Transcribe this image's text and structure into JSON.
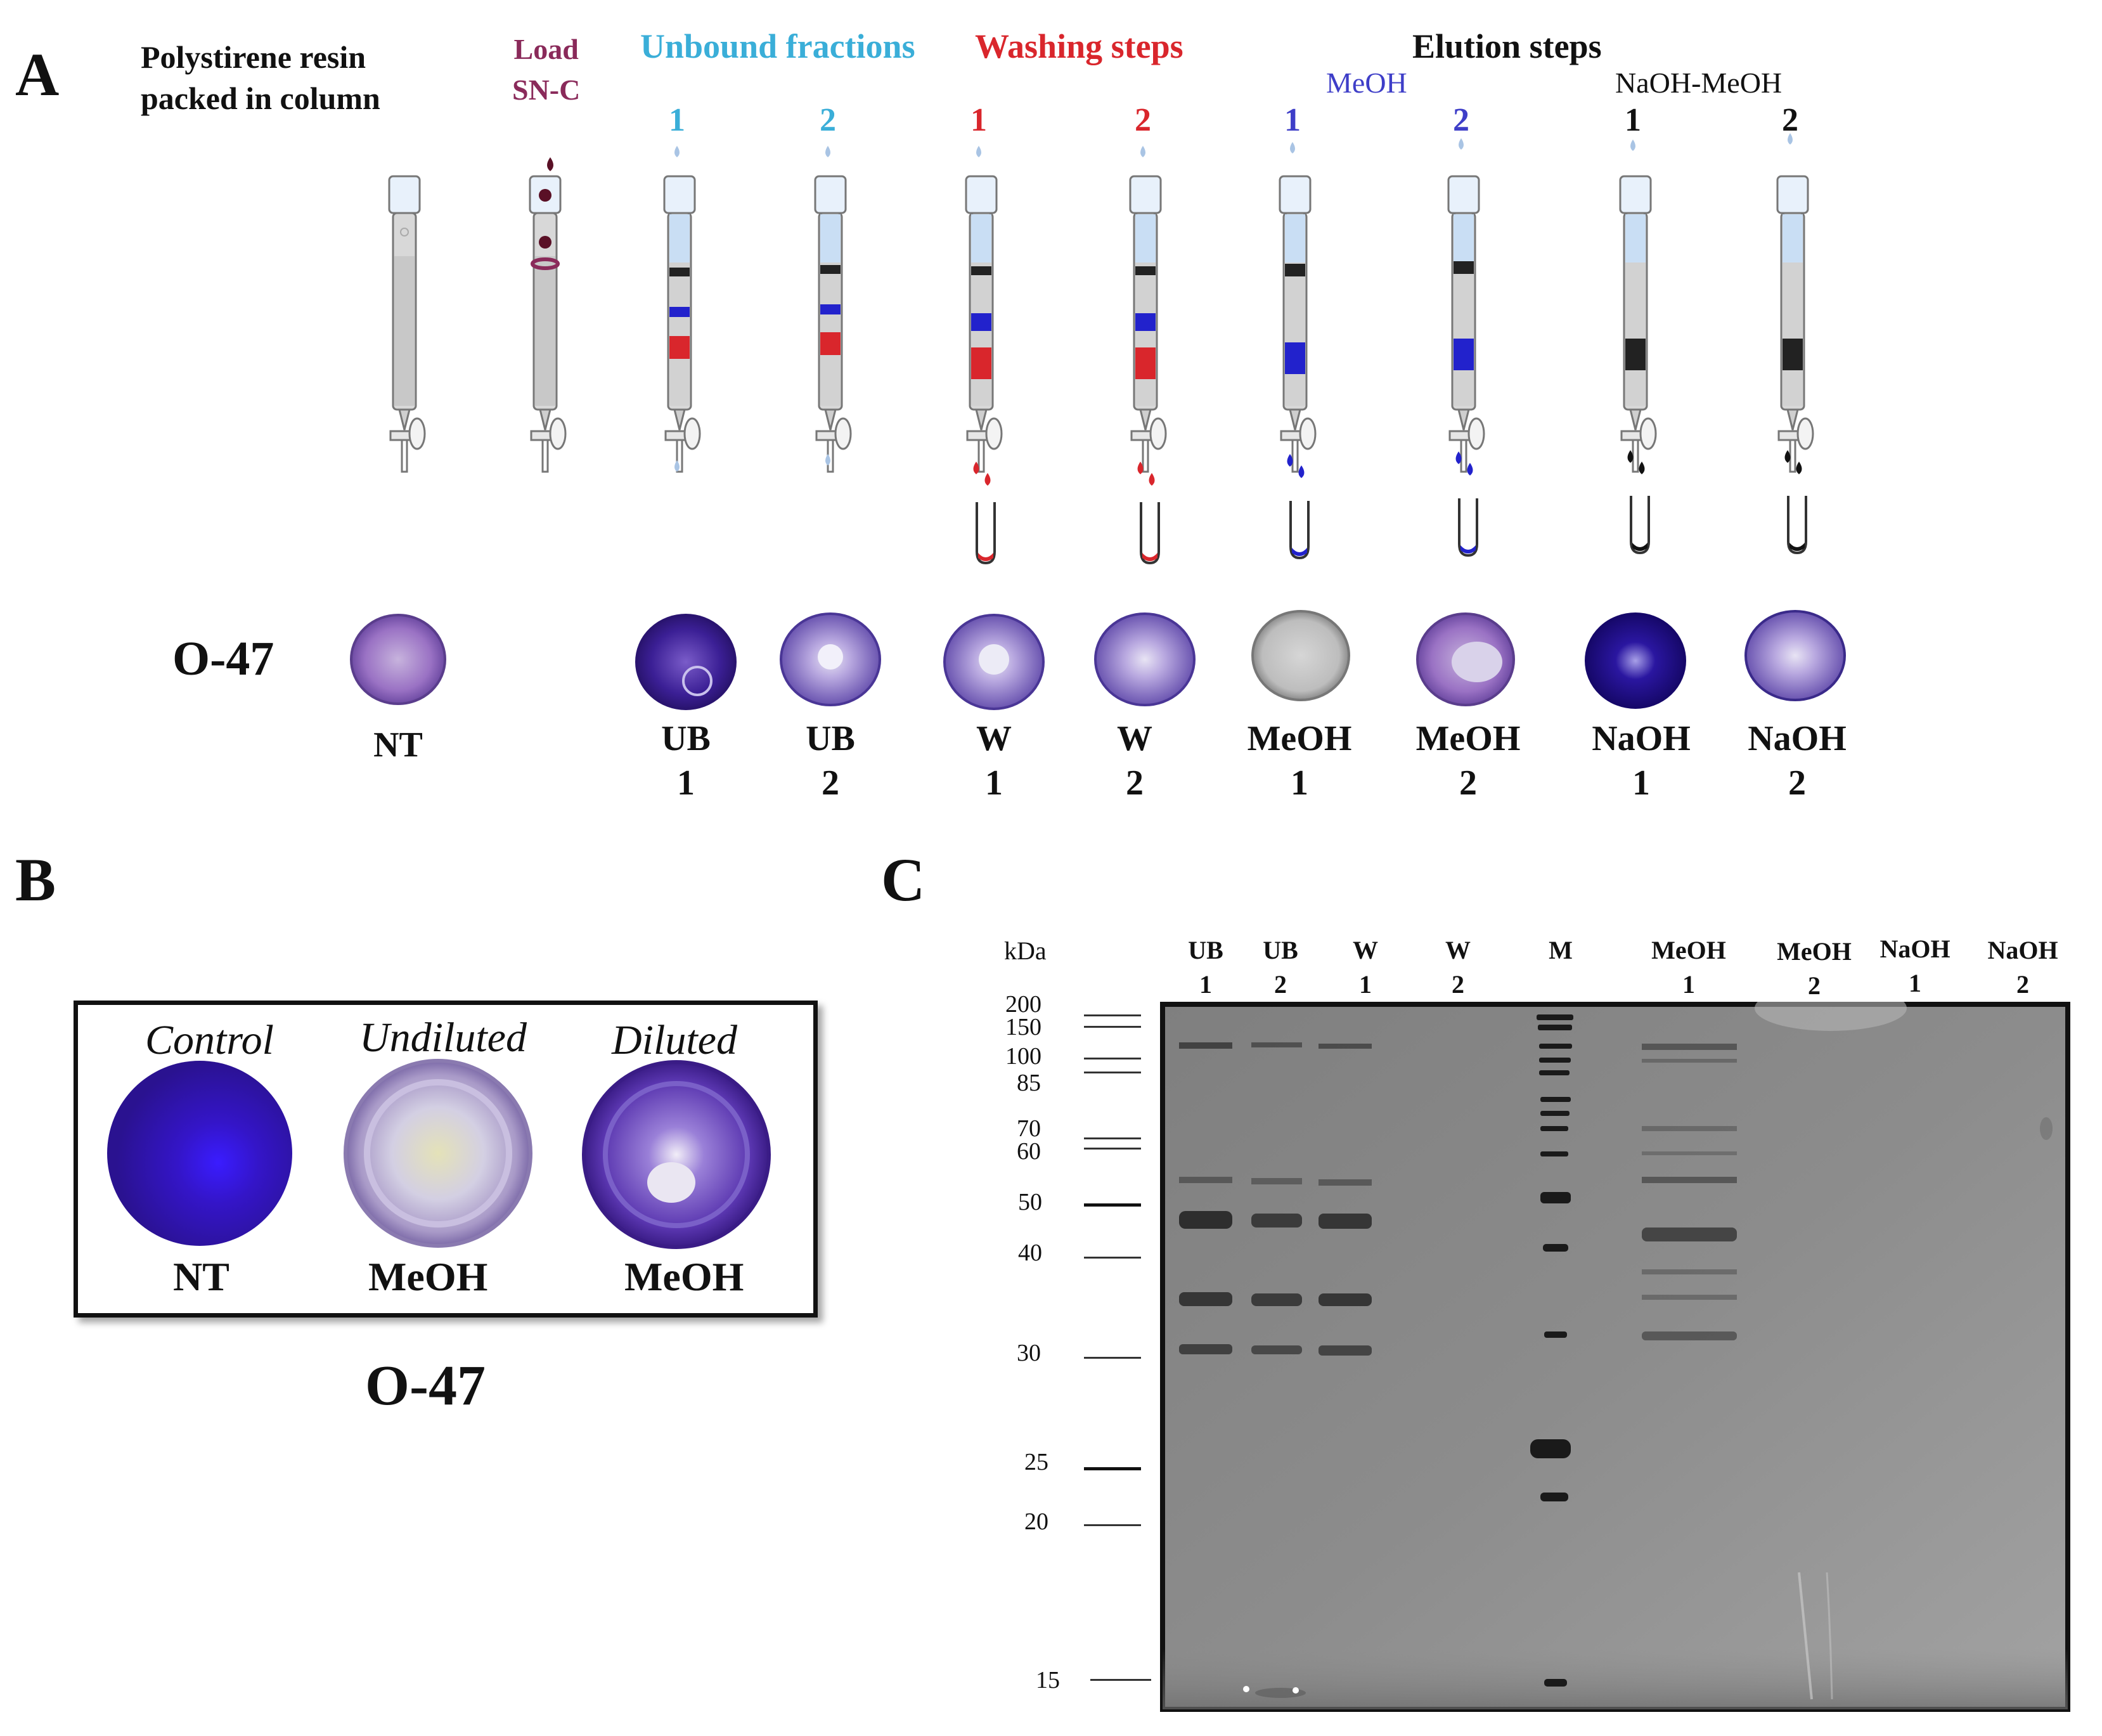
{
  "panel_a": {
    "letter": "A",
    "resin_title_1": "Polystirene resin",
    "resin_title_2": "packed in column",
    "load_1": "Load",
    "load_2": "SN-C",
    "unbound_title": "Unbound fractions",
    "washing_title": "Washing steps",
    "elution_title": "Elution steps",
    "meoh_group": "MeOH",
    "naoh_group": "NaOH-MeOH",
    "step_numbers": [
      "1",
      "2",
      "1",
      "2",
      "1",
      "2",
      "1",
      "2"
    ],
    "strain": "O-47",
    "plate_labels": [
      {
        "top": "NT",
        "bottom": ""
      },
      {
        "top": "UB",
        "bottom": "1"
      },
      {
        "top": "UB",
        "bottom": "2"
      },
      {
        "top": "W",
        "bottom": "1"
      },
      {
        "top": "W",
        "bottom": "2"
      },
      {
        "top": "MeOH",
        "bottom": "1"
      },
      {
        "top": "MeOH",
        "bottom": "2"
      },
      {
        "top": "NaOH",
        "bottom": "1"
      },
      {
        "top": "NaOH",
        "bottom": "2"
      }
    ]
  },
  "panel_b": {
    "letter": "B",
    "captions": [
      "Control",
      "Undiluted",
      "Diluted"
    ],
    "labels": [
      "NT",
      "MeOH",
      "MeOH"
    ],
    "strain": "O-47"
  },
  "panel_c": {
    "letter": "C",
    "unit": "kDa",
    "lanes": [
      {
        "top": "UB",
        "bottom": "1"
      },
      {
        "top": "UB",
        "bottom": "2"
      },
      {
        "top": "W",
        "bottom": "1"
      },
      {
        "top": "W",
        "bottom": "2"
      },
      {
        "top": "M",
        "bottom": ""
      },
      {
        "top": "MeOH",
        "bottom": "1"
      },
      {
        "top": "MeOH",
        "bottom": "2"
      },
      {
        "top": "NaOH",
        "bottom": "1"
      },
      {
        "top": "NaOH",
        "bottom": "2"
      }
    ],
    "markers": [
      "200",
      "150",
      "100",
      "85",
      "70",
      "60",
      "50",
      "40",
      "30",
      "25",
      "20",
      "15"
    ]
  },
  "colors": {
    "teal": "#3aaed8",
    "red": "#d9262c",
    "purple_load": "#8a2a5a",
    "meoh_blue": "#3e3ec8",
    "crystal_violet": "#3a1a8a"
  }
}
